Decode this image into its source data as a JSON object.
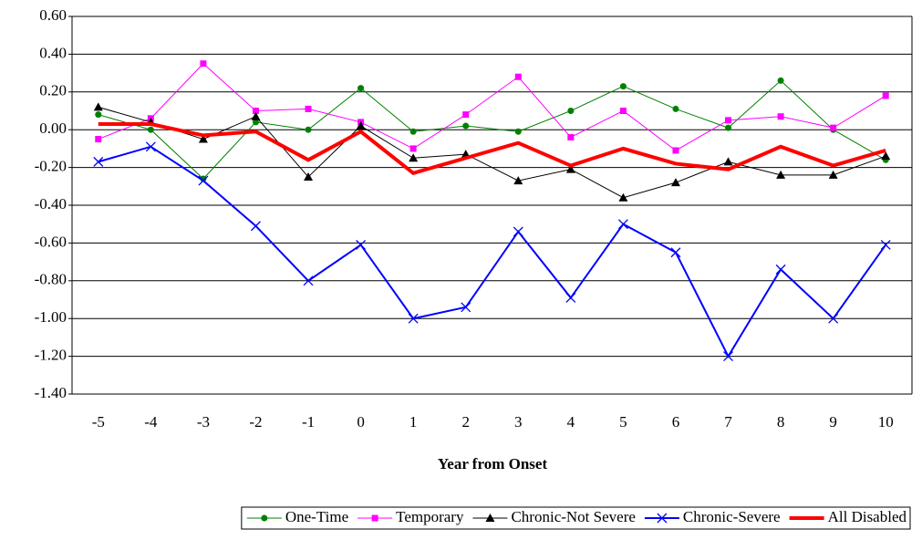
{
  "chart_data": {
    "type": "line",
    "x_label": "Year from Onset",
    "categories": [
      "-5",
      "-4",
      "-3",
      "-2",
      "-1",
      "0",
      "1",
      "2",
      "3",
      "4",
      "5",
      "6",
      "7",
      "8",
      "9",
      "10"
    ],
    "series": [
      {
        "name": "One-Time",
        "color": "#008000",
        "marker": "circle",
        "width": 1,
        "values": [
          0.08,
          0.0,
          -0.26,
          0.04,
          0.0,
          0.22,
          -0.01,
          0.02,
          -0.01,
          0.1,
          0.23,
          0.11,
          0.01,
          0.26,
          0.0,
          -0.16
        ]
      },
      {
        "name": "Temporary",
        "color": "#ff00ff",
        "marker": "square",
        "width": 1,
        "values": [
          -0.05,
          0.06,
          0.35,
          0.1,
          0.11,
          0.04,
          -0.1,
          0.08,
          0.28,
          -0.04,
          0.1,
          -0.11,
          0.05,
          0.07,
          0.01,
          0.18
        ]
      },
      {
        "name": "Chronic-Not Severe",
        "color": "#000000",
        "marker": "triangle",
        "width": 1,
        "values": [
          0.12,
          0.04,
          -0.05,
          0.07,
          -0.25,
          0.02,
          -0.15,
          -0.13,
          -0.27,
          -0.21,
          -0.36,
          -0.28,
          -0.17,
          -0.24,
          -0.24,
          -0.14
        ]
      },
      {
        "name": "Chronic-Severe",
        "color": "#0000ff",
        "marker": "x",
        "width": 2,
        "values": [
          -0.17,
          -0.09,
          -0.27,
          -0.51,
          -0.8,
          -0.61,
          -1.0,
          -0.94,
          -0.54,
          -0.89,
          -0.5,
          -0.65,
          -1.2,
          -0.74,
          -1.0,
          -0.61
        ]
      },
      {
        "name": "All Disabled",
        "color": "#ff0000",
        "marker": "none",
        "width": 4,
        "values": [
          0.03,
          0.03,
          -0.03,
          -0.01,
          -0.16,
          -0.01,
          -0.23,
          -0.15,
          -0.07,
          -0.19,
          -0.1,
          -0.18,
          -0.21,
          -0.09,
          -0.19,
          -0.11
        ]
      }
    ],
    "ylim": [
      -1.4,
      0.6
    ],
    "yticks": [
      {
        "value": -1.4,
        "label": "-1.40"
      },
      {
        "value": -1.2,
        "label": "-1.20"
      },
      {
        "value": -1.0,
        "label": "-1.00"
      },
      {
        "value": -0.8,
        "label": "-0.80"
      },
      {
        "value": -0.6,
        "label": "-0.60"
      },
      {
        "value": -0.4,
        "label": "-0.40"
      },
      {
        "value": -0.2,
        "label": "-0.20"
      },
      {
        "value": 0,
        "label": "0.00"
      },
      {
        "value": 0.2,
        "label": "0.20"
      },
      {
        "value": 0.4,
        "label": "0.40"
      },
      {
        "value": 0.6,
        "label": "0.60"
      }
    ],
    "grid": true,
    "legend": "bottom"
  }
}
